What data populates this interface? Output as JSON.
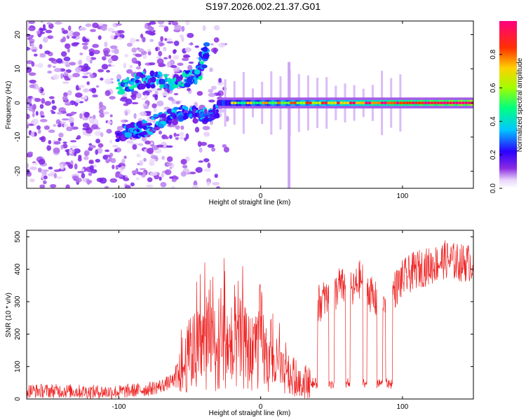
{
  "title": "S197.2026.002.21.37.G01",
  "colors": {
    "snr_line": "#ee2222",
    "frame": "#000000",
    "colorbar": [
      "#ffffff",
      "#d8b4f8",
      "#8a2be2",
      "#2a00ff",
      "#00c8ff",
      "#00ff80",
      "#a0ff00",
      "#ffd000",
      "#ff3000",
      "#ff0080"
    ]
  },
  "chart_data": [
    {
      "type": "heatmap",
      "name": "spectrogram",
      "title": "S197.2026.002.21.37.G01",
      "xlabel": "Height of straight line (km)",
      "ylabel": "Frequency (Hz)",
      "xlim": [
        -165,
        150
      ],
      "ylim": [
        -25,
        24
      ],
      "xticks": [
        -100,
        0,
        100
      ],
      "xtick_labels": [
        "-100",
        "0",
        "100"
      ],
      "yticks": [
        -20,
        -10,
        0,
        10,
        20
      ],
      "ytick_labels": [
        "-20",
        "-10",
        "0",
        "10",
        "20"
      ],
      "colorbar": {
        "label": "Normalized spectral amplitude",
        "range": [
          0,
          1
        ],
        "ticks": [
          0.0,
          0.2,
          0.4,
          0.6,
          0.8
        ],
        "tick_labels": [
          "0.0",
          "0.2",
          "0.4",
          "0.6",
          "0.8"
        ]
      },
      "features": [
        {
          "description": "diffuse noise",
          "x_range": [
            -165,
            -60
          ],
          "y_range": [
            -25,
            24
          ],
          "amplitude": 0.15
        },
        {
          "description": "upper branch",
          "points": [
            [
              -100,
              5
            ],
            [
              -80,
              7
            ],
            [
              -60,
              6
            ],
            [
              -45,
              8
            ],
            [
              -38,
              16
            ]
          ],
          "amplitude": 0.35
        },
        {
          "description": "lower branch",
          "points": [
            [
              -100,
              -9
            ],
            [
              -85,
              -8
            ],
            [
              -70,
              -5
            ],
            [
              -55,
              -3
            ],
            [
              -40,
              -4
            ],
            [
              -30,
              -2
            ]
          ],
          "amplitude": 0.3
        },
        {
          "description": "carrier line",
          "points": [
            [
              -30,
              0
            ],
            [
              0,
              0
            ],
            [
              50,
              0
            ],
            [
              100,
              0
            ],
            [
              150,
              0
            ]
          ],
          "amplitude_start": 0.4,
          "amplitude_end": 1.0
        }
      ]
    },
    {
      "type": "line",
      "name": "snr",
      "xlabel": "Height of straight line (km)",
      "ylabel": "SNR (10 * v/v)",
      "xlim": [
        -165,
        150
      ],
      "ylim": [
        0,
        520
      ],
      "xticks": [
        -100,
        0,
        100
      ],
      "xtick_labels": [
        "-100",
        "0",
        "100"
      ],
      "yticks": [
        0,
        100,
        200,
        300,
        400,
        500
      ],
      "ytick_labels": [
        "0",
        "100",
        "200",
        "300",
        "400",
        "500"
      ],
      "series": [
        {
          "name": "SNR",
          "x": [
            -165,
            -140,
            -120,
            -100,
            -80,
            -70,
            -60,
            -55,
            -50,
            -45,
            -40,
            -35,
            -30,
            -25,
            -20,
            -15,
            -10,
            -5,
            0,
            5,
            10,
            15,
            20,
            25,
            30,
            35,
            40,
            45,
            50,
            55,
            60,
            65,
            70,
            75,
            80,
            85,
            90,
            95,
            100,
            110,
            120,
            130,
            140,
            150
          ],
          "values": [
            25,
            25,
            22,
            22,
            30,
            40,
            60,
            90,
            140,
            150,
            170,
            160,
            120,
            200,
            120,
            170,
            150,
            140,
            200,
            90,
            110,
            80,
            60,
            50,
            45,
            60,
            290,
            310,
            300,
            350,
            340,
            330,
            370,
            350,
            300,
            320,
            320,
            340,
            370,
            400,
            410,
            430,
            420,
            420
          ],
          "dropouts": [
            [
              35,
              40
            ],
            [
              48,
              52
            ],
            [
              60,
              63
            ],
            [
              72,
              75
            ],
            [
              82,
              86
            ],
            [
              88,
              93
            ]
          ],
          "color": "#ee2222"
        }
      ]
    }
  ]
}
